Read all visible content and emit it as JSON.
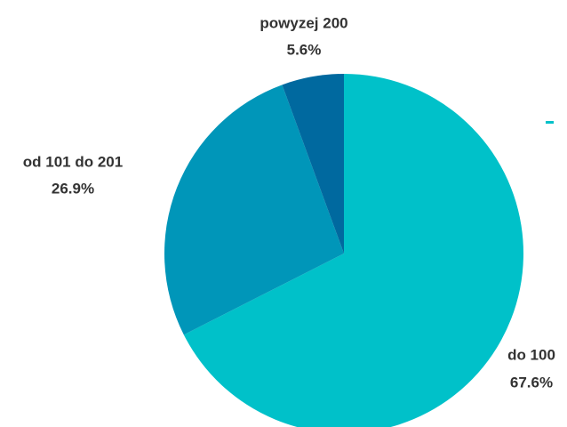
{
  "chart_data": {
    "type": "pie",
    "categories": [
      "do 100",
      "od 101 do 201",
      "powyzej 200"
    ],
    "values": [
      67.6,
      26.9,
      5.6
    ],
    "value_labels": [
      "67.6%",
      "26.9%",
      "5.6%"
    ],
    "colors": [
      "#00c1c9",
      "#0096b9",
      "#00699f"
    ]
  }
}
